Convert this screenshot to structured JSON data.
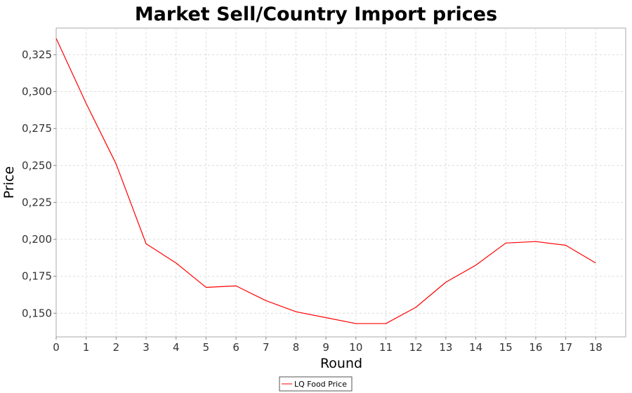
{
  "chart_data": {
    "type": "line",
    "title": "Market Sell/Country Import prices",
    "xlabel": "Round",
    "ylabel": "Price",
    "xlim": [
      0,
      19
    ],
    "ylim": [
      0.134,
      0.343
    ],
    "x_ticks": [
      0,
      1,
      2,
      3,
      4,
      5,
      6,
      7,
      8,
      9,
      10,
      11,
      12,
      13,
      14,
      15,
      16,
      17,
      18
    ],
    "y_ticks": [
      0.15,
      0.175,
      0.2,
      0.225,
      0.25,
      0.275,
      0.3,
      0.325
    ],
    "y_tick_labels": [
      "0,150",
      "0,175",
      "0,200",
      "0,225",
      "0,250",
      "0,275",
      "0,300",
      "0,325"
    ],
    "grid": true,
    "legend_position": "bottom-center",
    "series": [
      {
        "name": "LQ Food Price",
        "color": "#ff0000",
        "x": [
          0,
          1,
          2,
          3,
          4,
          5,
          6,
          7,
          8,
          9,
          10,
          11,
          12,
          13,
          14,
          15,
          16,
          17,
          18
        ],
        "values": [
          0.336,
          0.292,
          0.251,
          0.197,
          0.184,
          0.1675,
          0.1685,
          0.1585,
          0.151,
          0.147,
          0.143,
          0.143,
          0.154,
          0.171,
          0.1825,
          0.1975,
          0.1985,
          0.196,
          0.184
        ]
      }
    ]
  }
}
